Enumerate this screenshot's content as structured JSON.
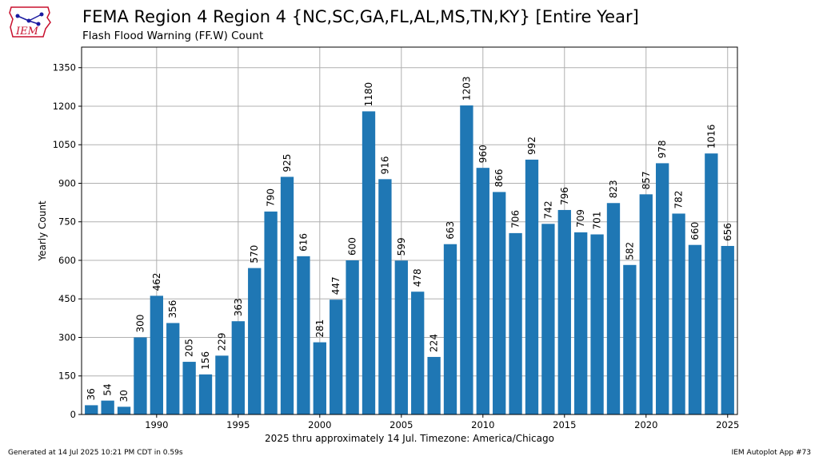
{
  "header": {
    "title": "FEMA Region 4 Region 4 {NC,SC,GA,FL,AL,MS,TN,KY} [Entire Year]",
    "subtitle": "Flash Flood Warning (FF.W) Count",
    "logo_text": "IEM"
  },
  "footer": {
    "generated": "Generated at 14 Jul 2025 10:21 PM CDT in 0.59s",
    "app": "IEM Autoplot App #73"
  },
  "colors": {
    "bar": "#1f77b4",
    "grid": "#b0b0b0",
    "logo": "#c8102e"
  },
  "chart_data": {
    "type": "bar",
    "xlabel": "2025 thru approximately 14 Jul. Timezone: America/Chicago",
    "ylabel": "Yearly Count",
    "grid": true,
    "xlim": [
      1985.4,
      2025.6
    ],
    "ylim": [
      0,
      1430
    ],
    "xticks": [
      1990,
      1995,
      2000,
      2005,
      2010,
      2015,
      2020,
      2025
    ],
    "yticks": [
      0,
      150,
      300,
      450,
      600,
      750,
      900,
      1050,
      1200,
      1350
    ],
    "x": [
      1986,
      1987,
      1988,
      1989,
      1990,
      1991,
      1992,
      1993,
      1994,
      1995,
      1996,
      1997,
      1998,
      1999,
      2000,
      2001,
      2002,
      2003,
      2004,
      2005,
      2006,
      2007,
      2008,
      2009,
      2010,
      2011,
      2012,
      2013,
      2014,
      2015,
      2016,
      2017,
      2018,
      2019,
      2020,
      2021,
      2022,
      2023,
      2024,
      2025
    ],
    "values": [
      36,
      54,
      30,
      300,
      462,
      356,
      205,
      156,
      229,
      363,
      570,
      790,
      925,
      616,
      281,
      447,
      600,
      1180,
      916,
      599,
      478,
      224,
      663,
      1203,
      960,
      866,
      706,
      992,
      742,
      796,
      709,
      701,
      823,
      582,
      857,
      978,
      782,
      660,
      1016,
      656
    ]
  }
}
